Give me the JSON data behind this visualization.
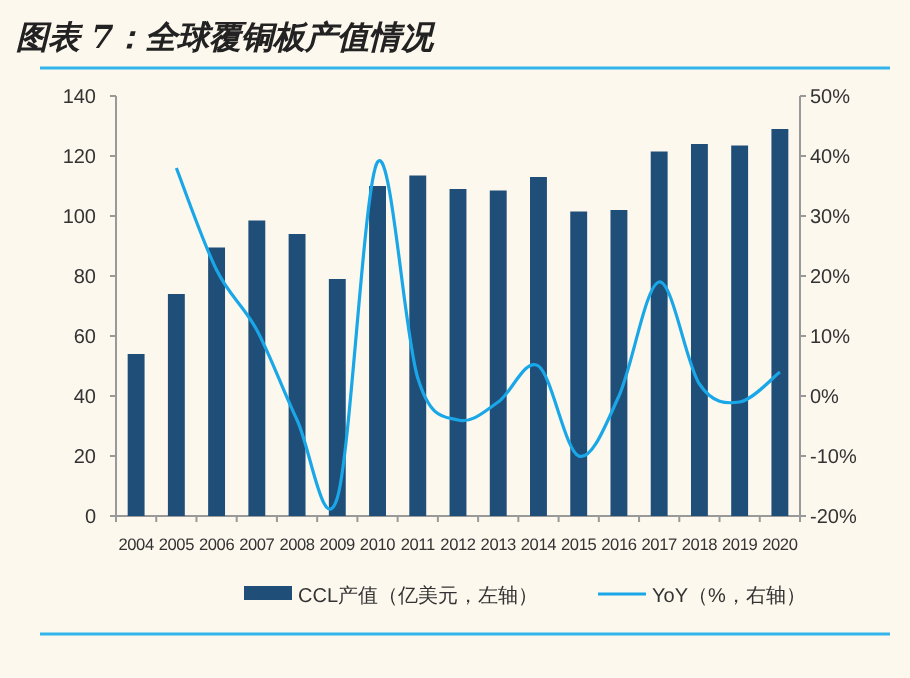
{
  "chart_data": {
    "type": "bar",
    "title": "图表 7：全球覆铜板产值情况",
    "categories": [
      "2004",
      "2005",
      "2006",
      "2007",
      "2008",
      "2009",
      "2010",
      "2011",
      "2012",
      "2013",
      "2014",
      "2015",
      "2016",
      "2017",
      "2018",
      "2019",
      "2020"
    ],
    "series": [
      {
        "name": "CCL产值（亿美元，左轴）",
        "color": "#1f4e79",
        "values": [
          54,
          74,
          89.5,
          98.5,
          94,
          79,
          110,
          113.5,
          109,
          108.5,
          113,
          101.5,
          102,
          121.5,
          124,
          123.5,
          129
        ]
      },
      {
        "name": "YoY（%，右轴）",
        "type": "line",
        "axis": "y2",
        "color": "#1aa7e8",
        "values": [
          null,
          38,
          21,
          11,
          -4,
          -17,
          39,
          3,
          -4,
          -1,
          5,
          -10,
          0,
          19,
          2,
          -1,
          4
        ]
      }
    ],
    "ylim": [
      0,
      140
    ],
    "yticks": [
      0,
      20,
      40,
      60,
      80,
      100,
      120,
      140
    ],
    "y2lim": [
      -20,
      50
    ],
    "y2ticks": [
      {
        "value": -20,
        "label": "-20%"
      },
      {
        "value": -10,
        "label": "-10%"
      },
      {
        "value": 0,
        "label": "0%"
      },
      {
        "value": 10,
        "label": "10%"
      },
      {
        "value": 20,
        "label": "20%"
      },
      {
        "value": 30,
        "label": "30%"
      },
      {
        "value": 40,
        "label": "40%"
      },
      {
        "value": 50,
        "label": "50%"
      }
    ],
    "grid": false,
    "legend": "bottom"
  }
}
